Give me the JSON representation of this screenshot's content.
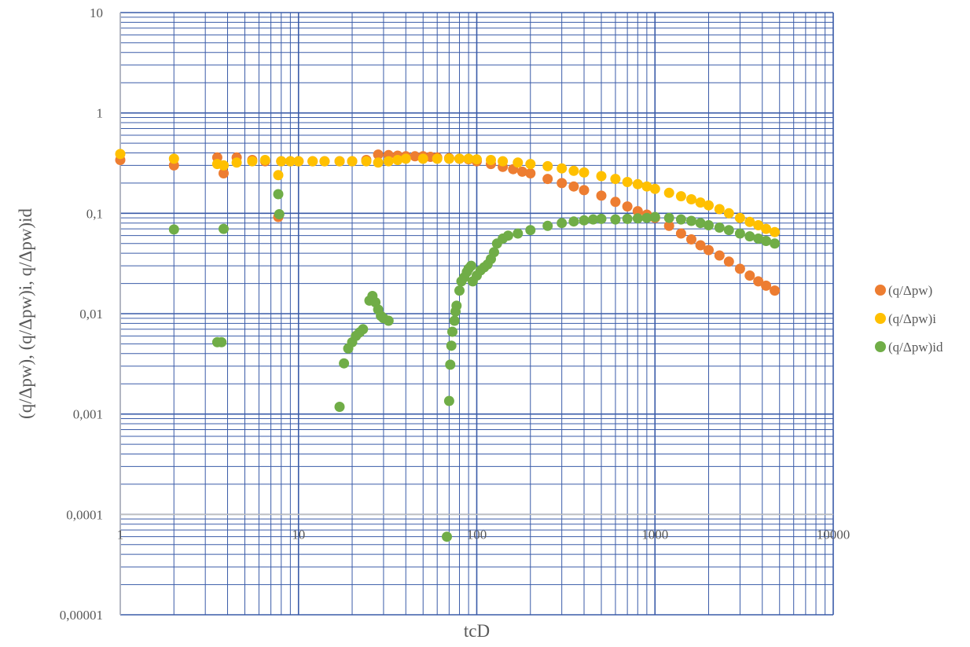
{
  "chart_data": {
    "type": "scatter",
    "title": "",
    "xlabel": "tcD",
    "ylabel": "(q/Δpw), (q/Δpw)i, q/Δpw)id",
    "x_scale": "log",
    "y_scale": "log",
    "xlim": [
      1,
      10000
    ],
    "ylim": [
      1e-05,
      10
    ],
    "x_tick_labels": [
      "1",
      "10",
      "100",
      "1000",
      "10000"
    ],
    "y_tick_labels": [
      "10",
      "1",
      "0,1",
      "0,01",
      "0,001",
      "0,0001",
      "0,00001"
    ],
    "grid": true,
    "legend_position": "right",
    "colors": {
      "grid": "#3a5ba8",
      "axis": "#bfbfbf"
    },
    "series": [
      {
        "name": "(q/Δpw)",
        "color": "#ed7d31",
        "points": [
          [
            1,
            0.34
          ],
          [
            2,
            0.3
          ],
          [
            3.5,
            0.36
          ],
          [
            3.8,
            0.25
          ],
          [
            4.5,
            0.36
          ],
          [
            5.5,
            0.34
          ],
          [
            6.5,
            0.33
          ],
          [
            7.7,
            0.092
          ],
          [
            8,
            0.33
          ],
          [
            9,
            0.33
          ],
          [
            10,
            0.33
          ],
          [
            12,
            0.33
          ],
          [
            14,
            0.33
          ],
          [
            17,
            0.33
          ],
          [
            20,
            0.33
          ],
          [
            24,
            0.34
          ],
          [
            28,
            0.385
          ],
          [
            32,
            0.38
          ],
          [
            36,
            0.375
          ],
          [
            40,
            0.37
          ],
          [
            45,
            0.37
          ],
          [
            50,
            0.37
          ],
          [
            55,
            0.365
          ],
          [
            60,
            0.36
          ],
          [
            70,
            0.355
          ],
          [
            80,
            0.35
          ],
          [
            90,
            0.345
          ],
          [
            100,
            0.33
          ],
          [
            120,
            0.31
          ],
          [
            140,
            0.29
          ],
          [
            160,
            0.275
          ],
          [
            180,
            0.26
          ],
          [
            200,
            0.25
          ],
          [
            250,
            0.22
          ],
          [
            300,
            0.2
          ],
          [
            350,
            0.185
          ],
          [
            400,
            0.17
          ],
          [
            500,
            0.15
          ],
          [
            600,
            0.13
          ],
          [
            700,
            0.117
          ],
          [
            800,
            0.105
          ],
          [
            900,
            0.097
          ],
          [
            1000,
            0.09
          ],
          [
            1200,
            0.075
          ],
          [
            1400,
            0.063
          ],
          [
            1600,
            0.055
          ],
          [
            1800,
            0.048
          ],
          [
            2000,
            0.043
          ],
          [
            2300,
            0.038
          ],
          [
            2600,
            0.033
          ],
          [
            3000,
            0.028
          ],
          [
            3400,
            0.024
          ],
          [
            3800,
            0.021
          ],
          [
            4200,
            0.019
          ],
          [
            4700,
            0.017
          ]
        ]
      },
      {
        "name": "(q/Δpw)i",
        "color": "#ffc000",
        "points": [
          [
            1,
            0.39
          ],
          [
            2,
            0.35
          ],
          [
            3.5,
            0.31
          ],
          [
            3.8,
            0.3
          ],
          [
            4.5,
            0.32
          ],
          [
            5.5,
            0.33
          ],
          [
            6.5,
            0.34
          ],
          [
            7.7,
            0.24
          ],
          [
            8,
            0.33
          ],
          [
            9,
            0.33
          ],
          [
            10,
            0.33
          ],
          [
            12,
            0.33
          ],
          [
            14,
            0.33
          ],
          [
            17,
            0.33
          ],
          [
            20,
            0.33
          ],
          [
            24,
            0.33
          ],
          [
            28,
            0.32
          ],
          [
            32,
            0.33
          ],
          [
            36,
            0.34
          ],
          [
            40,
            0.35
          ],
          [
            50,
            0.35
          ],
          [
            60,
            0.35
          ],
          [
            70,
            0.35
          ],
          [
            80,
            0.35
          ],
          [
            90,
            0.35
          ],
          [
            100,
            0.345
          ],
          [
            120,
            0.34
          ],
          [
            140,
            0.33
          ],
          [
            170,
            0.32
          ],
          [
            200,
            0.31
          ],
          [
            250,
            0.295
          ],
          [
            300,
            0.28
          ],
          [
            350,
            0.265
          ],
          [
            400,
            0.255
          ],
          [
            500,
            0.235
          ],
          [
            600,
            0.22
          ],
          [
            700,
            0.205
          ],
          [
            800,
            0.195
          ],
          [
            900,
            0.185
          ],
          [
            1000,
            0.175
          ],
          [
            1200,
            0.16
          ],
          [
            1400,
            0.148
          ],
          [
            1600,
            0.138
          ],
          [
            1800,
            0.128
          ],
          [
            2000,
            0.12
          ],
          [
            2300,
            0.11
          ],
          [
            2600,
            0.1
          ],
          [
            3000,
            0.09
          ],
          [
            3400,
            0.082
          ],
          [
            3800,
            0.076
          ],
          [
            4200,
            0.07
          ],
          [
            4700,
            0.065
          ]
        ]
      },
      {
        "name": "(q/Δpw)id",
        "color": "#70ad47",
        "points": [
          [
            2,
            0.069
          ],
          [
            3.5,
            0.0052
          ],
          [
            3.7,
            0.0052
          ],
          [
            3.8,
            0.07
          ],
          [
            7.7,
            0.155
          ],
          [
            7.8,
            0.098
          ],
          [
            17,
            0.00118
          ],
          [
            18,
            0.0032
          ],
          [
            19,
            0.0045
          ],
          [
            20,
            0.0052
          ],
          [
            21,
            0.006
          ],
          [
            22,
            0.0065
          ],
          [
            23,
            0.007
          ],
          [
            25,
            0.0135
          ],
          [
            26,
            0.015
          ],
          [
            27,
            0.013
          ],
          [
            28,
            0.011
          ],
          [
            29,
            0.0095
          ],
          [
            30,
            0.009
          ],
          [
            32,
            0.0085
          ],
          [
            68,
            6e-05
          ],
          [
            70,
            0.00135
          ],
          [
            71,
            0.0031
          ],
          [
            72,
            0.0048
          ],
          [
            73,
            0.0066
          ],
          [
            75,
            0.0085
          ],
          [
            76,
            0.0105
          ],
          [
            77,
            0.012
          ],
          [
            80,
            0.017
          ],
          [
            82,
            0.021
          ],
          [
            85,
            0.023
          ],
          [
            88,
            0.026
          ],
          [
            90,
            0.028
          ],
          [
            93,
            0.03
          ],
          [
            95,
            0.021
          ],
          [
            100,
            0.024
          ],
          [
            105,
            0.027
          ],
          [
            110,
            0.029
          ],
          [
            115,
            0.031
          ],
          [
            120,
            0.035
          ],
          [
            125,
            0.041
          ],
          [
            130,
            0.05
          ],
          [
            140,
            0.056
          ],
          [
            150,
            0.06
          ],
          [
            170,
            0.063
          ],
          [
            200,
            0.068
          ],
          [
            250,
            0.075
          ],
          [
            300,
            0.08
          ],
          [
            350,
            0.083
          ],
          [
            400,
            0.085
          ],
          [
            450,
            0.087
          ],
          [
            500,
            0.088
          ],
          [
            600,
            0.087
          ],
          [
            700,
            0.088
          ],
          [
            800,
            0.089
          ],
          [
            900,
            0.09
          ],
          [
            1000,
            0.092
          ],
          [
            1200,
            0.09
          ],
          [
            1400,
            0.087
          ],
          [
            1600,
            0.084
          ],
          [
            1800,
            0.08
          ],
          [
            2000,
            0.076
          ],
          [
            2300,
            0.072
          ],
          [
            2600,
            0.068
          ],
          [
            3000,
            0.063
          ],
          [
            3400,
            0.059
          ],
          [
            3800,
            0.056
          ],
          [
            4200,
            0.053
          ],
          [
            4700,
            0.05
          ]
        ]
      }
    ]
  }
}
